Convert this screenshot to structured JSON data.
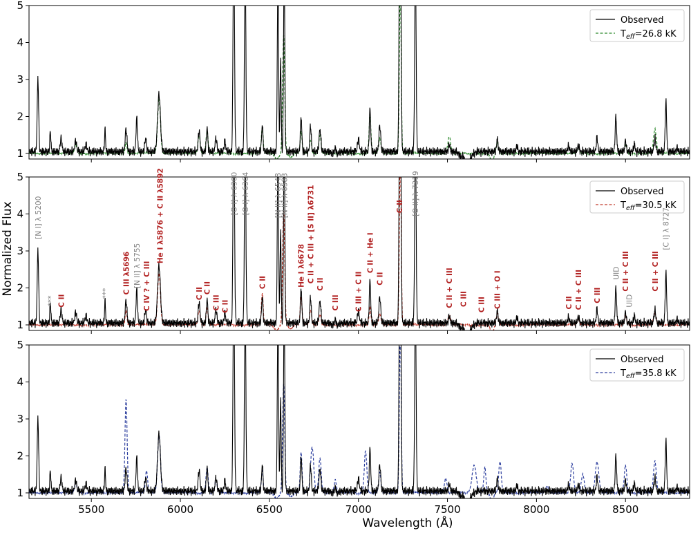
{
  "chart_data": {
    "type": "line",
    "xlabel": "Wavelength (Å)",
    "ylabel": "Normalized Flux",
    "xlim": [
      5150,
      8860
    ],
    "xticks": [
      5500,
      6000,
      6500,
      7000,
      7500,
      8000,
      8500
    ],
    "ylim": [
      0.85,
      5.0
    ],
    "yticks": [
      1,
      2,
      3,
      4,
      5
    ],
    "grid": false,
    "colors": {
      "observed": "#000000",
      "green": "#2e8b2e",
      "red": "#c0392b",
      "blue": "#2c3e9e",
      "nebular_label": "#808080",
      "stellar_label": "#b22222"
    },
    "observed_spectrum": {
      "name": "Observed",
      "continuum": 1.05,
      "lines": [
        [
          5200,
          2.0,
          4
        ],
        [
          5270,
          0.55,
          3
        ],
        [
          5330,
          0.35,
          5
        ],
        [
          5412,
          0.3,
          5
        ],
        [
          5470,
          0.2,
          5
        ],
        [
          5577,
          0.6,
          3
        ],
        [
          5695,
          0.6,
          5
        ],
        [
          5755,
          0.9,
          4
        ],
        [
          5805,
          0.35,
          5
        ],
        [
          5880,
          1.55,
          8
        ],
        [
          6105,
          0.55,
          5
        ],
        [
          6150,
          0.65,
          4
        ],
        [
          6200,
          0.35,
          5
        ],
        [
          6250,
          0.3,
          4
        ],
        [
          6300,
          6.0,
          4
        ],
        [
          6364,
          5.0,
          4
        ],
        [
          6460,
          0.7,
          4
        ],
        [
          6548,
          5.0,
          3.5
        ],
        [
          6563,
          2.5,
          3
        ],
        [
          6583,
          5.0,
          3.5
        ],
        [
          6678,
          0.95,
          4
        ],
        [
          6731,
          0.7,
          4
        ],
        [
          6784,
          0.6,
          5
        ],
        [
          6870,
          0.2,
          5
        ],
        [
          7000,
          0.35,
          5
        ],
        [
          7065,
          1.15,
          4
        ],
        [
          7120,
          0.7,
          5
        ],
        [
          7231,
          5.0,
          3.5
        ],
        [
          7237,
          5.0,
          3.5
        ],
        [
          7320,
          5.0,
          4
        ],
        [
          7510,
          0.2,
          4
        ],
        [
          7590,
          0.15,
          5
        ],
        [
          7780,
          0.35,
          4
        ],
        [
          7890,
          0.15,
          4
        ],
        [
          8180,
          0.15,
          5
        ],
        [
          8235,
          0.15,
          5
        ],
        [
          8340,
          0.4,
          4
        ],
        [
          8446,
          0.95,
          4
        ],
        [
          8500,
          0.3,
          4
        ],
        [
          8550,
          0.2,
          4
        ],
        [
          8665,
          0.35,
          5
        ],
        [
          8727,
          1.35,
          4
        ],
        [
          8790,
          0.1,
          4
        ]
      ],
      "absorption": [
        [
          7605,
          0.35,
          22
        ],
        [
          6870,
          0.1,
          15
        ]
      ]
    },
    "panels": [
      {
        "legend_model": "Teff=26.8 kK",
        "model_color": "#2e8b2e",
        "model": {
          "continuum": 1.0,
          "lines": [
            [
              5880,
              1.5,
              8
            ],
            [
              5695,
              0.3,
              5
            ],
            [
              5412,
              0.25,
              6
            ],
            [
              6105,
              0.5,
              6
            ],
            [
              6150,
              0.6,
              6
            ],
            [
              6460,
              0.7,
              5
            ],
            [
              6580,
              3.2,
              6
            ],
            [
              6678,
              0.6,
              5
            ],
            [
              6731,
              0.35,
              6
            ],
            [
              6784,
              0.5,
              6
            ],
            [
              7065,
              1.1,
              5
            ],
            [
              7120,
              0.4,
              6
            ],
            [
              7235,
              4.5,
              5
            ],
            [
              7510,
              0.45,
              8
            ],
            [
              7780,
              0.3,
              6
            ],
            [
              8235,
              0.15,
              6
            ],
            [
              8500,
              0.25,
              6
            ],
            [
              8665,
              0.65,
              8
            ]
          ],
          "absorption": [
            [
              6540,
              0.15,
              12
            ],
            [
              6620,
              0.1,
              12
            ],
            [
              7750,
              0.2,
              10
            ]
          ]
        }
      },
      {
        "legend_model": "Teff=30.5 kK",
        "model_color": "#c0392b",
        "model": {
          "continuum": 1.0,
          "lines": [
            [
              5695,
              0.4,
              5
            ],
            [
              5880,
              1.4,
              8
            ],
            [
              6105,
              0.4,
              6
            ],
            [
              6150,
              0.45,
              6
            ],
            [
              6460,
              0.85,
              5
            ],
            [
              6580,
              3.1,
              6
            ],
            [
              6678,
              0.75,
              5
            ],
            [
              6731,
              0.4,
              6
            ],
            [
              6784,
              0.3,
              6
            ],
            [
              7065,
              0.5,
              5
            ],
            [
              7120,
              0.3,
              6
            ],
            [
              7235,
              4.6,
              5
            ],
            [
              7510,
              0.25,
              8
            ],
            [
              7780,
              0.3,
              6
            ],
            [
              8235,
              0.15,
              6
            ],
            [
              8500,
              0.25,
              6
            ],
            [
              8665,
              0.3,
              8
            ]
          ],
          "absorption": [
            [
              6540,
              0.15,
              12
            ],
            [
              6620,
              0.1,
              12
            ],
            [
              7750,
              0.2,
              10
            ]
          ]
        },
        "annotations": [
          {
            "w": 5200,
            "text": "[N I] λ 5200",
            "kind": "neb",
            "y": 3.9
          },
          {
            "w": 5270,
            "text": "***",
            "kind": "neb",
            "y": 1.65
          },
          {
            "w": 5330,
            "text": "C II",
            "kind": "st",
            "y": 1.65
          },
          {
            "w": 5577,
            "text": "***",
            "kind": "neb",
            "y": 1.85
          },
          {
            "w": 5695,
            "text": "C III λ5696",
            "kind": "st",
            "y": 2.4
          },
          {
            "w": 5755,
            "text": "[N II] λ 5755",
            "kind": "neb",
            "y": 2.6
          },
          {
            "w": 5810,
            "text": "C IV ? + C III",
            "kind": "st",
            "y": 2.05
          },
          {
            "w": 5885,
            "text": "He I λ5876 + C II λ5892",
            "kind": "st",
            "y": 3.95
          },
          {
            "w": 6105,
            "text": "C II",
            "kind": "st",
            "y": 1.85
          },
          {
            "w": 6150,
            "text": "C II",
            "kind": "st",
            "y": 2.0
          },
          {
            "w": 6200,
            "text": "C III",
            "kind": "st",
            "y": 1.6
          },
          {
            "w": 6250,
            "text": "C II",
            "kind": "st",
            "y": 1.5
          },
          {
            "w": 6300,
            "text": "[O I] λ 6300",
            "kind": "neb",
            "y": 4.55
          },
          {
            "w": 6364,
            "text": "[O I] λ 6364",
            "kind": "neb",
            "y": 4.55
          },
          {
            "w": 6460,
            "text": "C II",
            "kind": "st",
            "y": 2.15
          },
          {
            "w": 6548,
            "text": "[N II] λ 6548",
            "kind": "neb",
            "y": 4.5
          },
          {
            "w": 6583,
            "text": "[N II] λ 6583",
            "kind": "neb",
            "y": 4.5
          },
          {
            "w": 6678,
            "text": "He I λ6678",
            "kind": "st",
            "y": 2.6
          },
          {
            "w": 6731,
            "text": "C II + C III + [S II] λ6731",
            "kind": "mix",
            "y": 3.45
          },
          {
            "w": 6784,
            "text": "C II",
            "kind": "st",
            "y": 2.1
          },
          {
            "w": 6870,
            "text": "C III",
            "kind": "st",
            "y": 1.6
          },
          {
            "w": 7000,
            "text": "C III + C II",
            "kind": "st",
            "y": 1.9
          },
          {
            "w": 7065,
            "text": "C II + He I",
            "kind": "st",
            "y": 2.95
          },
          {
            "w": 7120,
            "text": "C II",
            "kind": "st",
            "y": 2.25
          },
          {
            "w": 7230,
            "text": "C II",
            "kind": "st",
            "y": 4.2
          },
          {
            "w": 7320,
            "text": "[O II] λ 7319",
            "kind": "neb",
            "y": 4.55
          },
          {
            "w": 7510,
            "text": "C II + C III",
            "kind": "st",
            "y": 2.0
          },
          {
            "w": 7590,
            "text": "C III",
            "kind": "st",
            "y": 1.7
          },
          {
            "w": 7690,
            "text": "C III",
            "kind": "st",
            "y": 1.55
          },
          {
            "w": 7780,
            "text": "C III + O I",
            "kind": "st",
            "y": 1.95
          },
          {
            "w": 8180,
            "text": "C II",
            "kind": "st",
            "y": 1.6
          },
          {
            "w": 8235,
            "text": "C II + C III",
            "kind": "st",
            "y": 1.95
          },
          {
            "w": 8340,
            "text": "C III",
            "kind": "st",
            "y": 1.8
          },
          {
            "w": 8446,
            "text": "UID",
            "kind": "neb",
            "y": 2.4
          },
          {
            "w": 8500,
            "text": "C II + C III",
            "kind": "st",
            "y": 2.45
          },
          {
            "w": 8520,
            "text": "UID",
            "kind": "neb",
            "y": 1.65
          },
          {
            "w": 8665,
            "text": "C II + C III",
            "kind": "st",
            "y": 2.45
          },
          {
            "w": 8727,
            "text": "[C I] λ 8727",
            "kind": "neb",
            "y": 3.6
          }
        ]
      },
      {
        "legend_model": "Teff=35.8 kK",
        "model_color": "#2c3e9e",
        "model": {
          "continuum": 1.0,
          "lines": [
            [
              5412,
              0.3,
              6
            ],
            [
              5695,
              2.55,
              6
            ],
            [
              5810,
              0.6,
              6
            ],
            [
              5880,
              1.6,
              8
            ],
            [
              6150,
              0.7,
              6
            ],
            [
              6200,
              0.35,
              6
            ],
            [
              6460,
              0.6,
              5
            ],
            [
              6580,
              2.95,
              6
            ],
            [
              6678,
              1.1,
              5
            ],
            [
              6740,
              1.25,
              9
            ],
            [
              6784,
              0.95,
              7
            ],
            [
              6870,
              0.35,
              6
            ],
            [
              7040,
              1.15,
              7
            ],
            [
              7120,
              0.55,
              6
            ],
            [
              7235,
              4.6,
              5
            ],
            [
              7490,
              0.4,
              7
            ],
            [
              7650,
              0.75,
              12
            ],
            [
              7710,
              0.7,
              6
            ],
            [
              7795,
              0.85,
              7
            ],
            [
              8060,
              0.2,
              6
            ],
            [
              8200,
              0.8,
              8
            ],
            [
              8260,
              0.5,
              8
            ],
            [
              8340,
              0.85,
              10
            ],
            [
              8500,
              0.75,
              7
            ],
            [
              8665,
              0.85,
              8
            ]
          ],
          "absorption": [
            [
              6540,
              0.15,
              12
            ],
            [
              6620,
              0.1,
              12
            ],
            [
              7750,
              0.2,
              10
            ]
          ]
        }
      }
    ]
  },
  "legend": {
    "observed": "Observed",
    "teff_prefix": "T",
    "teff_sub": "eff",
    "teff_values": [
      "=26.8 kK",
      "=30.5 kK",
      "=35.8 kK"
    ]
  }
}
